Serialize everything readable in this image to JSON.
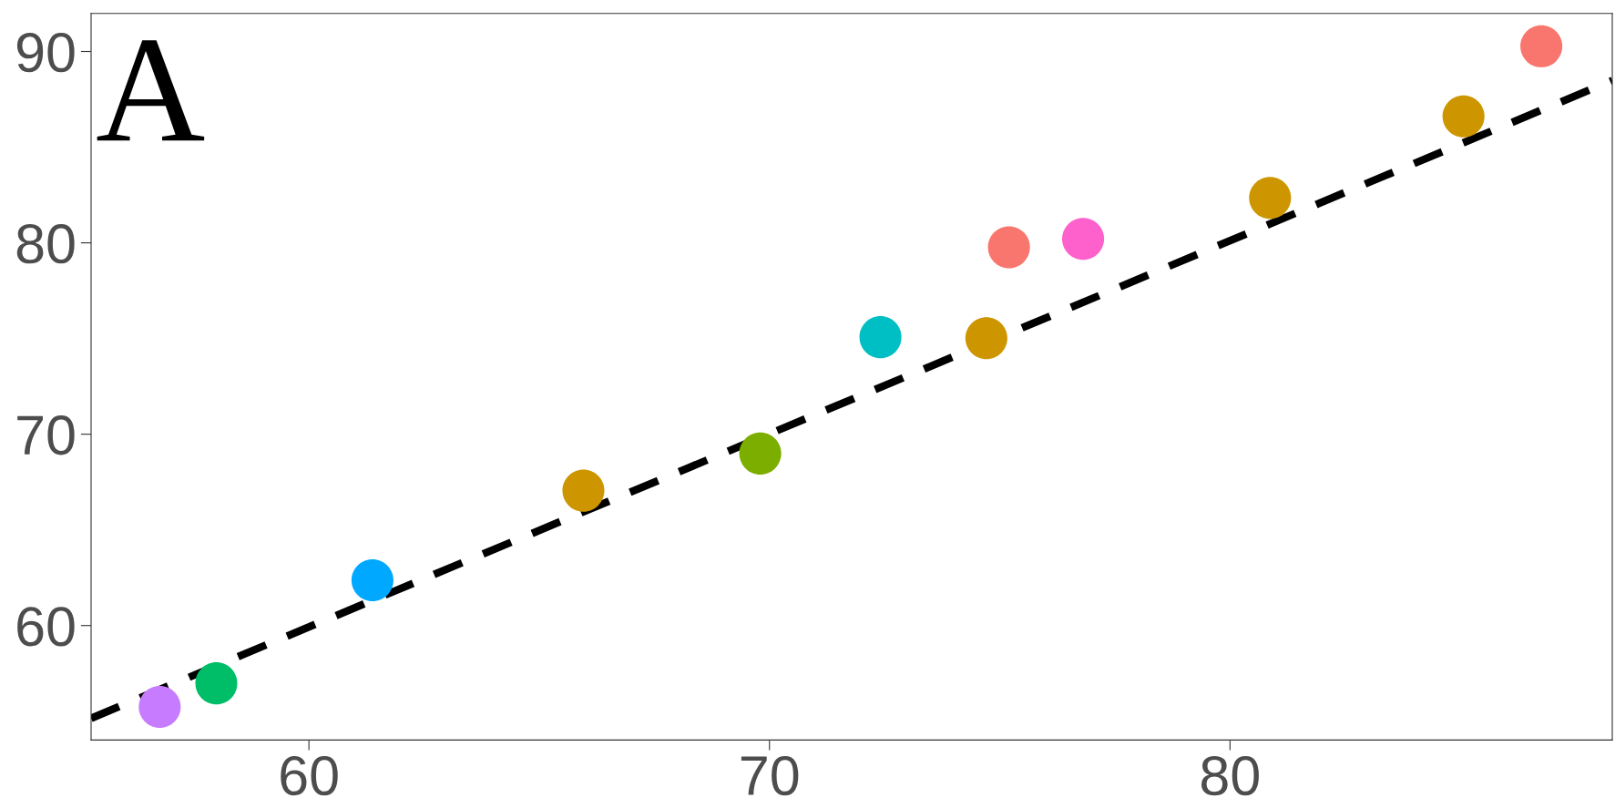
{
  "chart_data": {
    "type": "scatter",
    "annotations": [
      "A"
    ],
    "xlim": [
      55.27,
      88.3
    ],
    "ylim": [
      54.02,
      91.99
    ],
    "xticks": [
      60,
      70,
      80
    ],
    "yticks": [
      60,
      70,
      80,
      90
    ],
    "grid": false,
    "legend": false,
    "marker": "circle",
    "series": [
      {
        "x": [
          56.76,
          57.99,
          61.38,
          65.96,
          69.8,
          72.41,
          74.71,
          75.2,
          76.81,
          80.87,
          85.07,
          86.76
        ],
        "values": [
          55.75,
          56.98,
          62.37,
          67.05,
          68.99,
          75.07,
          75.02,
          79.77,
          80.21,
          82.35,
          86.61,
          90.27
        ],
        "colors": [
          "#c77cff",
          "#00be67",
          "#00a9ff",
          "#cd9600",
          "#7cae00",
          "#00bfc4",
          "#cd9600",
          "#f8766d",
          "#ff61cc",
          "#cd9600",
          "#cd9600",
          "#f8766d"
        ]
      },
      {
        "type": "line",
        "x": [
          55.27,
          88.3
        ],
        "values": [
          55.15,
          88.49
        ],
        "color": "#000000",
        "line_style": "dashed",
        "marker": "none"
      }
    ]
  }
}
